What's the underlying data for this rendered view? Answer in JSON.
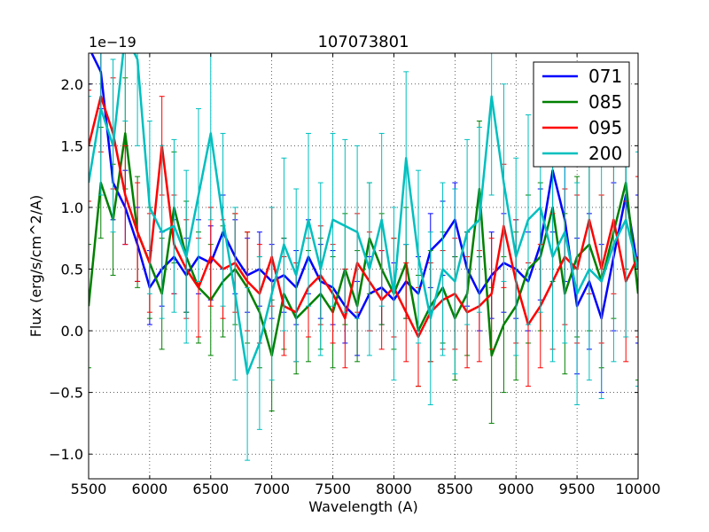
{
  "chart_data": {
    "type": "line",
    "title": "107073801",
    "xlabel": "Wavelength (A)",
    "ylabel": "Flux (erg/s/cm^2/A)",
    "y_offset_label": "1e−19",
    "xlim": [
      5500,
      10000
    ],
    "ylim": [
      -1.2,
      2.25
    ],
    "x_ticks": [
      5500,
      6000,
      6500,
      7000,
      7500,
      8000,
      8500,
      9000,
      9500,
      10000
    ],
    "y_ticks": [
      -1.0,
      -0.5,
      0.0,
      0.5,
      1.0,
      1.5,
      2.0
    ],
    "y_tick_labels": [
      "−1.0",
      "−0.5",
      "0.0",
      "0.5",
      "1.0",
      "1.5",
      "2.0"
    ],
    "grid": true,
    "legend_position": "top-right",
    "series": [
      {
        "name": "071",
        "color": "#0000ff",
        "x": [
          5500,
          5600,
          5700,
          5800,
          5900,
          6000,
          6100,
          6200,
          6300,
          6400,
          6500,
          6600,
          6700,
          6800,
          6900,
          7000,
          7100,
          7200,
          7300,
          7400,
          7500,
          7600,
          7700,
          7800,
          7900,
          8000,
          8100,
          8200,
          8300,
          8400,
          8500,
          8600,
          8700,
          8800,
          8900,
          9000,
          9100,
          9200,
          9300,
          9400,
          9500,
          9600,
          9700,
          9800,
          9900,
          10000
        ],
        "y": [
          2.3,
          2.1,
          1.2,
          1.0,
          0.7,
          0.35,
          0.5,
          0.6,
          0.45,
          0.6,
          0.55,
          0.8,
          0.6,
          0.45,
          0.5,
          0.4,
          0.45,
          0.35,
          0.6,
          0.4,
          0.35,
          0.2,
          0.1,
          0.3,
          0.35,
          0.25,
          0.4,
          0.3,
          0.65,
          0.75,
          0.9,
          0.5,
          0.3,
          0.45,
          0.55,
          0.5,
          0.4,
          0.7,
          1.3,
          0.9,
          0.2,
          0.4,
          0.1,
          0.6,
          1.1,
          0.5
        ],
        "err": [
          0.3,
          0.3,
          0.3,
          0.3,
          0.3,
          0.3,
          0.3,
          0.3,
          0.3,
          0.3,
          0.3,
          0.3,
          0.3,
          0.3,
          0.3,
          0.3,
          0.3,
          0.3,
          0.3,
          0.3,
          0.3,
          0.3,
          0.3,
          0.3,
          0.3,
          0.3,
          0.3,
          0.3,
          0.3,
          0.3,
          0.3,
          0.3,
          0.3,
          0.35,
          0.4,
          0.4,
          0.4,
          0.45,
          0.5,
          0.5,
          0.55,
          0.55,
          0.6,
          0.6,
          0.6,
          0.6
        ]
      },
      {
        "name": "085",
        "color": "#008000",
        "x": [
          5500,
          5600,
          5700,
          5800,
          5900,
          6000,
          6100,
          6200,
          6300,
          6400,
          6500,
          6600,
          6700,
          6800,
          6900,
          7000,
          7100,
          7200,
          7300,
          7400,
          7500,
          7600,
          7700,
          7800,
          7900,
          8000,
          8100,
          8200,
          8300,
          8400,
          8500,
          8600,
          8700,
          8800,
          8900,
          9000,
          9100,
          9200,
          9300,
          9400,
          9500,
          9600,
          9700,
          9800,
          9900,
          10000
        ],
        "y": [
          0.2,
          1.2,
          0.9,
          1.6,
          0.8,
          0.55,
          0.3,
          1.0,
          0.6,
          0.35,
          0.25,
          0.4,
          0.5,
          0.35,
          0.15,
          -0.2,
          0.3,
          0.1,
          0.2,
          0.3,
          0.15,
          0.5,
          0.2,
          0.75,
          0.5,
          0.3,
          0.55,
          0.0,
          0.2,
          0.35,
          0.1,
          0.3,
          1.15,
          -0.2,
          0.05,
          0.2,
          0.5,
          0.6,
          1.0,
          0.3,
          0.6,
          0.7,
          0.4,
          0.8,
          1.2,
          0.3
        ],
        "err": [
          0.5,
          0.45,
          0.45,
          0.45,
          0.45,
          0.45,
          0.45,
          0.45,
          0.45,
          0.45,
          0.45,
          0.45,
          0.45,
          0.45,
          0.45,
          0.45,
          0.45,
          0.45,
          0.45,
          0.45,
          0.45,
          0.45,
          0.45,
          0.45,
          0.45,
          0.45,
          0.45,
          0.45,
          0.45,
          0.45,
          0.5,
          0.5,
          0.55,
          0.55,
          0.55,
          0.6,
          0.6,
          0.6,
          0.6,
          0.65,
          0.65,
          0.7,
          0.7,
          0.7,
          0.7,
          0.7
        ]
      },
      {
        "name": "095",
        "color": "#ff0000",
        "x": [
          5500,
          5600,
          5700,
          5800,
          5900,
          6000,
          6100,
          6200,
          6300,
          6400,
          6500,
          6600,
          6700,
          6800,
          6900,
          7000,
          7100,
          7200,
          7300,
          7400,
          7500,
          7600,
          7700,
          7800,
          7900,
          8000,
          8100,
          8200,
          8300,
          8400,
          8500,
          8600,
          8700,
          8800,
          8900,
          9000,
          9100,
          9200,
          9300,
          9400,
          9500,
          9600,
          9700,
          9800,
          9900,
          10000
        ],
        "y": [
          1.5,
          1.9,
          1.6,
          1.1,
          0.8,
          0.55,
          1.5,
          0.7,
          0.5,
          0.35,
          0.6,
          0.5,
          0.55,
          0.4,
          0.3,
          0.6,
          0.2,
          0.15,
          0.35,
          0.45,
          0.3,
          0.1,
          0.55,
          0.4,
          0.25,
          0.35,
          0.15,
          -0.05,
          0.15,
          0.25,
          0.3,
          0.15,
          0.2,
          0.3,
          0.85,
          0.4,
          0.05,
          0.2,
          0.4,
          0.6,
          0.5,
          0.9,
          0.5,
          0.9,
          0.4,
          0.6
        ],
        "err": [
          0.45,
          0.45,
          0.45,
          0.4,
          0.4,
          0.4,
          0.4,
          0.4,
          0.4,
          0.4,
          0.4,
          0.4,
          0.4,
          0.4,
          0.4,
          0.4,
          0.4,
          0.4,
          0.4,
          0.4,
          0.4,
          0.4,
          0.4,
          0.4,
          0.4,
          0.4,
          0.4,
          0.4,
          0.4,
          0.4,
          0.45,
          0.45,
          0.45,
          0.45,
          0.5,
          0.5,
          0.5,
          0.5,
          0.55,
          0.55,
          0.6,
          0.6,
          0.6,
          0.6,
          0.65,
          0.65
        ]
      },
      {
        "name": "200",
        "color": "#00bfbf",
        "x": [
          5500,
          5600,
          5700,
          5800,
          5900,
          6000,
          6100,
          6200,
          6300,
          6400,
          6500,
          6600,
          6700,
          6800,
          6900,
          7000,
          7100,
          7200,
          7300,
          7400,
          7500,
          7600,
          7700,
          7800,
          7900,
          8000,
          8100,
          8200,
          8300,
          8400,
          8500,
          8600,
          8700,
          8800,
          8900,
          9000,
          9100,
          9200,
          9300,
          9400,
          9500,
          9600,
          9700,
          9800,
          9900,
          10000
        ],
        "y": [
          1.2,
          1.8,
          1.5,
          2.4,
          2.2,
          1.0,
          0.8,
          0.85,
          0.6,
          1.1,
          1.6,
          0.9,
          0.3,
          -0.35,
          -0.1,
          0.3,
          0.7,
          0.45,
          0.9,
          0.5,
          0.9,
          0.85,
          0.8,
          0.5,
          0.9,
          0.3,
          1.4,
          0.6,
          0.1,
          0.5,
          0.4,
          0.8,
          0.9,
          1.9,
          1.2,
          0.6,
          0.9,
          1.0,
          0.6,
          0.8,
          0.3,
          0.5,
          0.4,
          0.7,
          0.9,
          0.5
        ],
        "err": [
          0.7,
          0.7,
          0.7,
          0.7,
          0.7,
          0.7,
          0.7,
          0.7,
          0.7,
          0.7,
          0.7,
          0.7,
          0.7,
          0.7,
          0.7,
          0.7,
          0.7,
          0.7,
          0.7,
          0.7,
          0.7,
          0.7,
          0.7,
          0.7,
          0.7,
          0.7,
          0.7,
          0.7,
          0.7,
          0.7,
          0.75,
          0.75,
          0.75,
          0.8,
          0.8,
          0.8,
          0.85,
          0.85,
          0.85,
          0.9,
          0.9,
          0.9,
          0.95,
          0.95,
          0.95,
          0.95
        ]
      }
    ]
  }
}
